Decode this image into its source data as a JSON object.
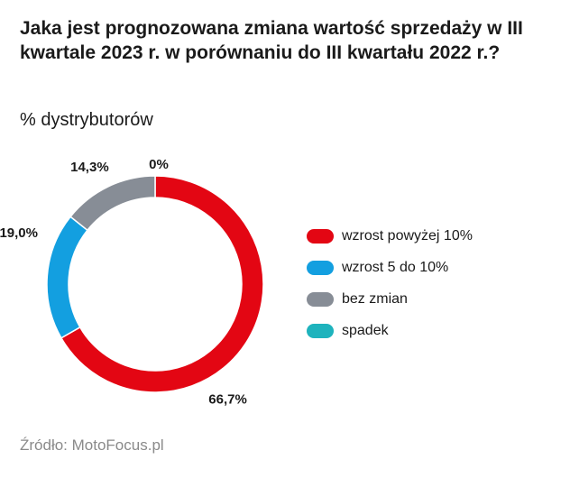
{
  "chart_data": {
    "type": "pie",
    "title": "Jaka jest prognozowana zmiana wartość sprzedaży w III kwartale 2023 r. w porównaniu do III kwartału 2022 r.?",
    "subtitle": "% dystrybutorów",
    "source": "Źródło: MotoFocus.pl",
    "legend_position": "right",
    "donut": true,
    "slices": [
      {
        "label": "wzrost powyżej 10%",
        "value": 66.7,
        "display": "66,7%",
        "color": "#e30613"
      },
      {
        "label": "wzrost 5 do 10%",
        "value": 19.0,
        "display": "19,0%",
        "color": "#139fe0"
      },
      {
        "label": "bez zmian",
        "value": 14.3,
        "display": "14,3%",
        "color": "#878d96"
      },
      {
        "label": "spadek",
        "value": 0,
        "display": "0%",
        "color": "#1eb3bd"
      }
    ]
  }
}
